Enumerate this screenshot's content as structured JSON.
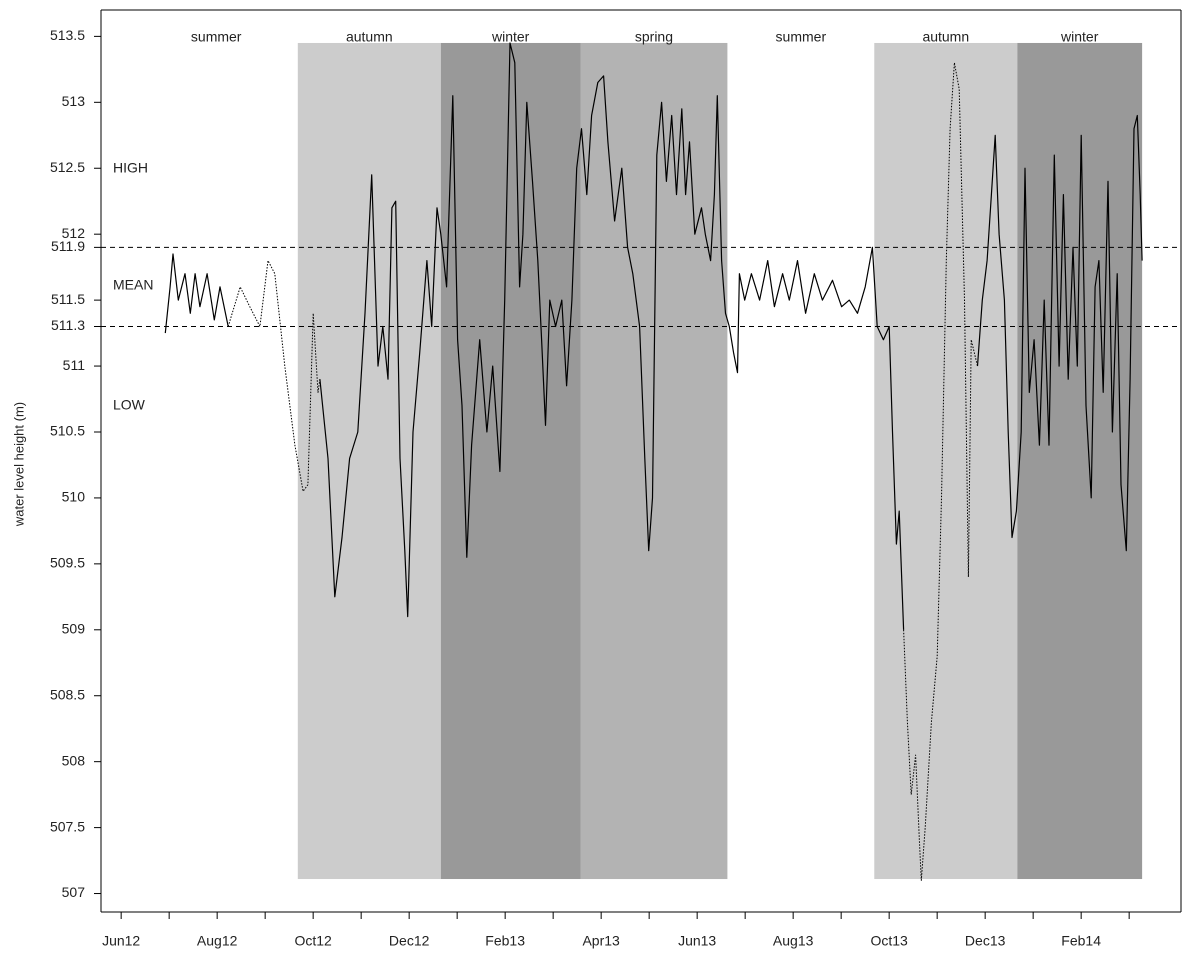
{
  "chart_data": {
    "type": "line",
    "y_label": "water level height (m)",
    "xlim": [
      -0.42,
      22.08
    ],
    "ylim": [
      506.86,
      513.7
    ],
    "xticks": [
      {
        "value": 0,
        "label": "Jun12"
      },
      {
        "value": 2,
        "label": "Aug12"
      },
      {
        "value": 4,
        "label": "Oct12"
      },
      {
        "value": 6,
        "label": "Dec12"
      },
      {
        "value": 8,
        "label": "Feb13"
      },
      {
        "value": 10,
        "label": "Apr13"
      },
      {
        "value": 12,
        "label": "Jun13"
      },
      {
        "value": 14,
        "label": "Aug13"
      },
      {
        "value": 16,
        "label": "Oct13"
      },
      {
        "value": 18,
        "label": "Dec13"
      },
      {
        "value": 20,
        "label": "Feb14"
      }
    ],
    "xminorticks": [
      1,
      3,
      5,
      7,
      9,
      11,
      13,
      15,
      17,
      19,
      21
    ],
    "yticks": [
      507,
      507.5,
      508,
      508.5,
      509,
      509.5,
      510,
      510.5,
      511,
      511.3,
      511.5,
      511.9,
      512,
      512.5,
      513,
      513.5
    ],
    "hlines": [
      511.9,
      511.3
    ],
    "level_labels": [
      "HIGH",
      "MEAN",
      "LOW"
    ],
    "bands": [
      {
        "label": "summer",
        "start": 0.28,
        "end": 3.68,
        "color": null
      },
      {
        "label": "autumn",
        "start": 3.68,
        "end": 6.66,
        "color": "#cccccc"
      },
      {
        "label": "winter",
        "start": 6.66,
        "end": 9.57,
        "color": "#999999"
      },
      {
        "label": "spring",
        "start": 9.57,
        "end": 12.63,
        "color": "#b3b3b3"
      },
      {
        "label": "summer",
        "start": 12.63,
        "end": 15.69,
        "color": null
      },
      {
        "label": "autumn",
        "start": 15.69,
        "end": 18.67,
        "color": "#cccccc"
      },
      {
        "label": "winter",
        "start": 18.67,
        "end": 21.27,
        "color": "#999999"
      }
    ],
    "band_range": [
      507.11,
      513.45
    ],
    "series": [
      {
        "color": "#000000",
        "dashed": false,
        "x": [
          0.92,
          1.02,
          1.08,
          1.19,
          1.33,
          1.44,
          1.54,
          1.64,
          1.79,
          1.94,
          2.06,
          2.23,
          null,
          4.14,
          4.31,
          4.45,
          4.6,
          4.76,
          4.93,
          5.08,
          5.22,
          5.35,
          5.45,
          5.56,
          5.64,
          5.72,
          5.81,
          5.91,
          5.97,
          6.08,
          6.22,
          6.37,
          6.47,
          6.58,
          6.66,
          6.78,
          6.91,
          7.01,
          7.1,
          7.2,
          7.3,
          7.47,
          7.62,
          7.74,
          7.89,
          7.99,
          8.1,
          8.2,
          8.3,
          8.37,
          8.45,
          8.57,
          8.68,
          8.76,
          8.84,
          8.93,
          9.05,
          9.18,
          9.28,
          9.39,
          9.49,
          9.59,
          9.7,
          9.8,
          9.93,
          10.05,
          10.14,
          10.28,
          10.43,
          10.55,
          10.66,
          10.8,
          10.91,
          10.99,
          11.07,
          11.16,
          11.26,
          11.36,
          11.47,
          11.57,
          11.68,
          11.76,
          11.84,
          11.95,
          12.09,
          12.17,
          12.28,
          12.36,
          12.42,
          12.51,
          12.59,
          12.67,
          12.76,
          12.84,
          12.88,
          12.99,
          13.13,
          13.3,
          13.47,
          13.61,
          13.78,
          13.92,
          14.09,
          14.26,
          14.44,
          14.61,
          14.82,
          15.01,
          15.17,
          15.34,
          15.5,
          15.65,
          15.75,
          15.88,
          16.0,
          16.07,
          16.15,
          16.21,
          16.3,
          null,
          17.84,
          17.94,
          18.04,
          18.13,
          18.21,
          18.29,
          18.4,
          18.48,
          18.56,
          18.65,
          18.75,
          18.83,
          18.92,
          19.02,
          19.13,
          19.23,
          19.33,
          19.44,
          19.54,
          19.63,
          19.73,
          19.83,
          19.92,
          20.0,
          20.1,
          20.21,
          20.29,
          20.37,
          20.46,
          20.56,
          20.65,
          20.75,
          20.83,
          20.94,
          21.02,
          21.1,
          21.17,
          21.23,
          21.27
        ],
        "values": [
          511.25,
          511.6,
          511.85,
          511.5,
          511.7,
          511.4,
          511.7,
          511.45,
          511.7,
          511.35,
          511.6,
          511.3,
          null,
          510.9,
          510.3,
          509.25,
          509.7,
          510.3,
          510.5,
          511.4,
          512.45,
          511.0,
          511.3,
          510.9,
          512.2,
          512.25,
          510.3,
          509.6,
          509.1,
          510.5,
          511.1,
          511.8,
          511.3,
          512.2,
          512.0,
          511.6,
          513.05,
          511.2,
          510.7,
          509.55,
          510.4,
          511.2,
          510.5,
          511.0,
          510.2,
          511.5,
          513.45,
          513.3,
          511.6,
          512.0,
          513.0,
          512.4,
          511.8,
          511.2,
          510.55,
          511.5,
          511.3,
          511.5,
          510.85,
          511.5,
          512.5,
          512.8,
          512.3,
          512.9,
          513.15,
          513.2,
          512.7,
          512.1,
          512.5,
          511.9,
          511.7,
          511.3,
          510.3,
          509.6,
          510.0,
          512.6,
          513.0,
          512.4,
          512.9,
          512.3,
          512.95,
          512.3,
          512.7,
          512.0,
          512.2,
          512.0,
          511.8,
          512.3,
          513.05,
          511.8,
          511.4,
          511.3,
          511.1,
          510.95,
          511.7,
          511.5,
          511.7,
          511.5,
          511.8,
          511.45,
          511.7,
          511.5,
          511.8,
          511.4,
          511.7,
          511.5,
          511.65,
          511.45,
          511.5,
          511.4,
          511.6,
          511.9,
          511.3,
          511.2,
          511.3,
          510.5,
          509.65,
          509.9,
          509.0,
          null,
          511.0,
          511.5,
          511.8,
          512.3,
          512.75,
          512.0,
          511.5,
          510.5,
          509.7,
          509.9,
          510.5,
          512.5,
          510.8,
          511.2,
          510.4,
          511.5,
          510.4,
          512.6,
          511.0,
          512.3,
          510.9,
          511.9,
          511.0,
          512.75,
          510.7,
          510.0,
          511.6,
          511.8,
          510.8,
          512.4,
          510.5,
          511.7,
          510.1,
          509.6,
          510.9,
          512.8,
          512.9,
          512.3,
          511.8
        ]
      },
      {
        "color": "#000000",
        "dashed": true,
        "x": [
          2.23,
          2.48,
          2.68,
          2.89,
          3.06,
          3.2,
          3.41,
          3.62,
          3.79,
          3.89,
          4.0,
          4.1,
          4.14,
          null,
          16.3,
          16.38,
          16.46,
          16.55,
          16.63,
          16.67,
          16.75,
          16.88,
          17.0,
          17.09,
          17.19,
          17.27,
          17.36,
          17.46,
          17.57,
          17.65,
          17.71,
          17.84
        ],
        "values": [
          511.3,
          511.6,
          511.45,
          511.3,
          511.8,
          511.7,
          511.0,
          510.4,
          510.05,
          510.1,
          511.4,
          510.8,
          510.9,
          null,
          509.0,
          508.3,
          507.75,
          508.05,
          507.4,
          507.1,
          507.5,
          508.3,
          508.8,
          510.0,
          511.8,
          512.8,
          513.3,
          513.1,
          511.5,
          509.4,
          511.2,
          511.0
        ]
      }
    ]
  }
}
